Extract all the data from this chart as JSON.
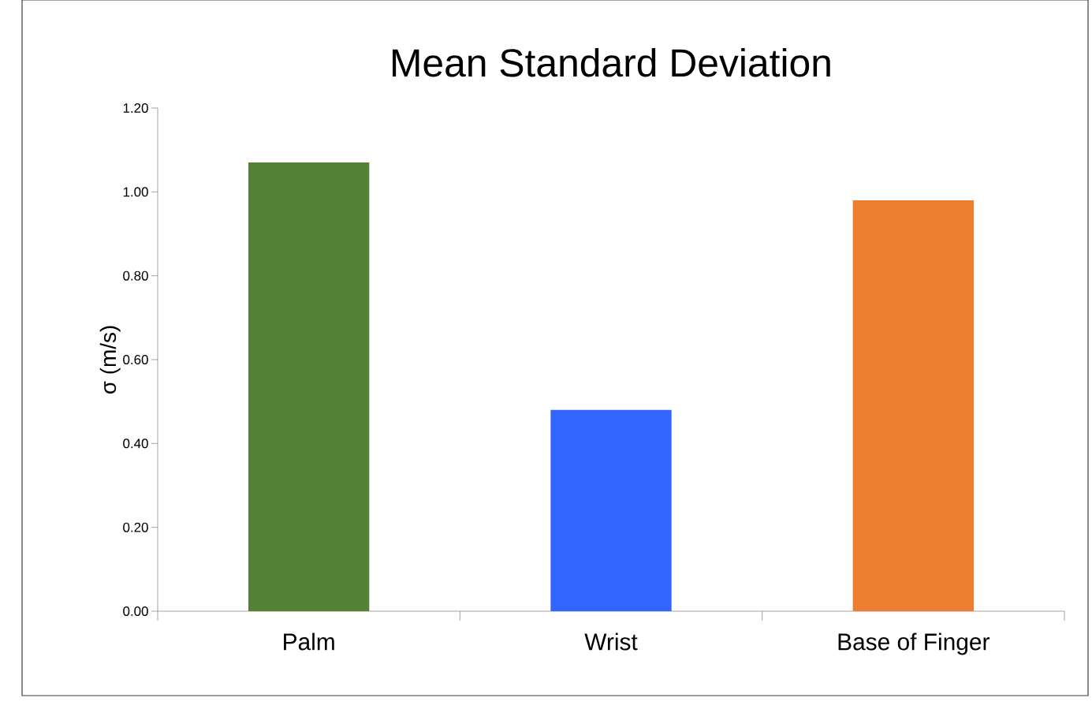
{
  "chart_data": {
    "type": "bar",
    "title": "Mean Standard Deviation",
    "ylabel": "σ (m/s)",
    "categories": [
      "Palm",
      "Wrist",
      "Base of Finger"
    ],
    "values": [
      1.07,
      0.48,
      0.98
    ],
    "colors": [
      "#538135",
      "#3366ff",
      "#ed7d31"
    ],
    "ylim": [
      0,
      1.2
    ],
    "yticks": [
      {
        "value": 0,
        "label": "0.00"
      },
      {
        "value": 0.2,
        "label": "0.20"
      },
      {
        "value": 0.4,
        "label": "0.40"
      },
      {
        "value": 0.6,
        "label": "0.60"
      },
      {
        "value": 0.8,
        "label": "0.80"
      },
      {
        "value": 1.0,
        "label": "1.00"
      },
      {
        "value": 1.2,
        "label": "1.20"
      }
    ],
    "grid": false
  }
}
